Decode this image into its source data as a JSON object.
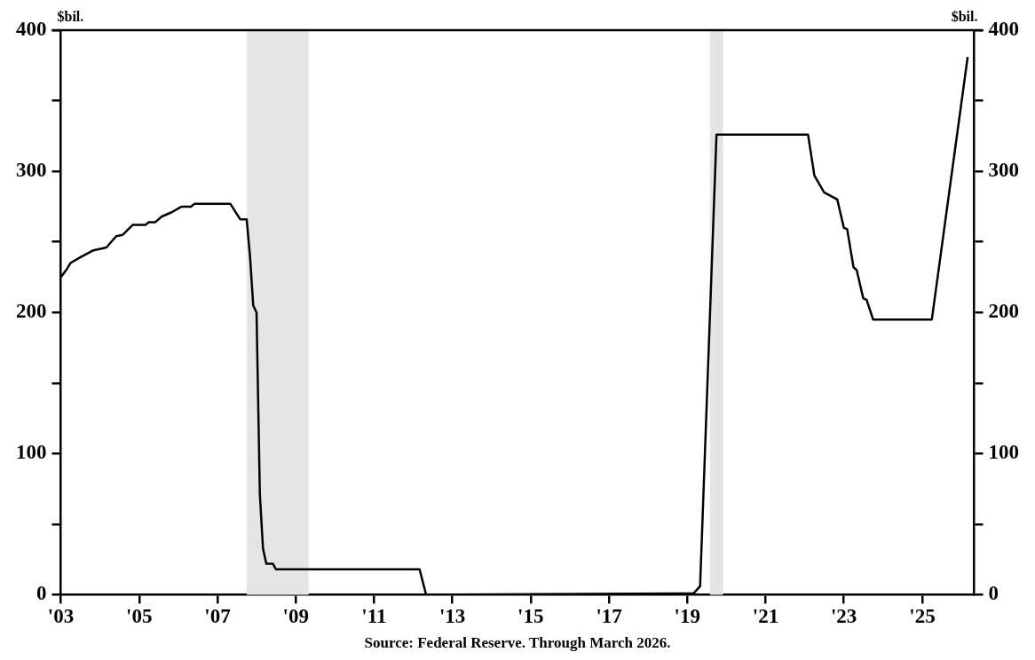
{
  "chart_data": {
    "type": "line",
    "ylabel": "$bil.",
    "y2label": "$bil.",
    "annotations": [
      "Source: Federal Reserve. Through March 2026."
    ],
    "x": [
      "2003-01",
      "2003-03",
      "2003-04",
      "2003-07",
      "2003-11",
      "2004-03",
      "2004-06",
      "2004-08",
      "2004-11",
      "2005-03",
      "2005-04",
      "2005-06",
      "2005-08",
      "2005-11",
      "2006-02",
      "2006-05",
      "2006-06",
      "2007-05",
      "2007-08",
      "2007-10",
      "2007-11",
      "2007-12",
      "2008-01",
      "2008-02",
      "2008-03",
      "2008-04",
      "2008-06",
      "2008-07",
      "2012-03",
      "2012-05",
      "2019-03",
      "2019-05",
      "2019-10",
      "2022-02",
      "2022-04",
      "2022-07",
      "2022-11",
      "2023-01",
      "2023-02",
      "2023-04",
      "2023-05",
      "2023-07",
      "2023-08",
      "2023-10",
      "2025-04",
      "2026-03"
    ],
    "series": [
      {
        "color": "#000000",
        "values": [
          225,
          231,
          235,
          239,
          244,
          246,
          254,
          255,
          262,
          262,
          264,
          264,
          268,
          271,
          275,
          275,
          277,
          277,
          266,
          266,
          240,
          205,
          200,
          71,
          33,
          22,
          22,
          18,
          18,
          0,
          1,
          6,
          326,
          326,
          297,
          285,
          280,
          260,
          259,
          232,
          230,
          210,
          209,
          195,
          195,
          381
        ]
      }
    ],
    "xlim": [
      "2003-01",
      "2026-05"
    ],
    "xticks": [
      {
        "value": "2003-01",
        "label": "'03"
      },
      {
        "value": "2005-01",
        "label": "'05"
      },
      {
        "value": "2007-01",
        "label": "'07"
      },
      {
        "value": "2009-01",
        "label": "'09"
      },
      {
        "value": "2011-01",
        "label": "'11"
      },
      {
        "value": "2013-01",
        "label": "'13"
      },
      {
        "value": "2015-01",
        "label": "'15"
      },
      {
        "value": "2017-01",
        "label": "'17"
      },
      {
        "value": "2019-01",
        "label": "'19"
      },
      {
        "value": "2021-01",
        "label": "'21"
      },
      {
        "value": "2023-01",
        "label": "'23"
      },
      {
        "value": "2025-01",
        "label": "'25"
      }
    ],
    "ylim": [
      0,
      400
    ],
    "yticks": [
      0,
      {
        "value": 50,
        "label": null
      },
      100,
      {
        "value": 150,
        "label": null
      },
      200,
      {
        "value": 250,
        "label": null
      },
      300,
      {
        "value": 350,
        "label": null
      },
      400
    ],
    "y2lim": [
      0,
      400
    ],
    "y2ticks": [
      0,
      {
        "value": 50,
        "label": null
      },
      100,
      {
        "value": 150,
        "label": null
      },
      200,
      {
        "value": 250,
        "label": null
      },
      300,
      {
        "value": 350,
        "label": null
      },
      400
    ],
    "bands": [
      {
        "axis": "x",
        "from": "2007-10",
        "to": "2009-05",
        "color": "#e5e5e5"
      },
      {
        "axis": "x",
        "from": "2019-08",
        "to": "2019-12",
        "color": "#e5e5e5"
      }
    ],
    "grid": false,
    "legend": false,
    "marker": "none",
    "line_style": "solid"
  }
}
